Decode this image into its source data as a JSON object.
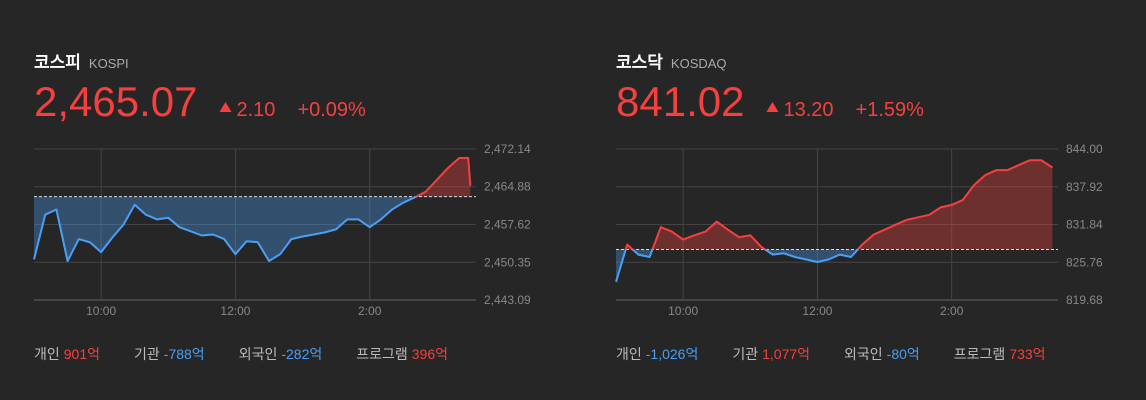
{
  "panels": [
    {
      "title": "코스피",
      "subtitle": "KOSPI",
      "price": {
        "value": 2465.07,
        "label": "2,465.07"
      },
      "change": {
        "value": 2.1,
        "label": "2.10"
      },
      "change_pct": {
        "value": 0.09,
        "label": "+0.09%"
      },
      "chart_data": {
        "type": "line",
        "x": [
          0,
          10,
          20,
          30,
          40,
          50,
          60,
          70,
          80,
          90,
          100,
          110,
          120,
          130,
          140,
          150,
          160,
          170,
          180,
          190,
          200,
          210,
          220,
          230,
          240,
          250,
          260,
          270,
          280,
          290,
          300,
          310,
          320,
          330,
          340,
          350,
          360,
          370,
          380,
          388,
          390
        ],
        "series": [
          {
            "values": [
              2450.9,
              2459.5,
              2460.5,
              2450.6,
              2454.8,
              2454.2,
              2452.3,
              2455.1,
              2457.6,
              2461.4,
              2459.5,
              2458.6,
              2458.9,
              2457.1,
              2456.3,
              2455.5,
              2455.7,
              2454.8,
              2451.9,
              2454.4,
              2454.2,
              2450.6,
              2451.9,
              2454.8,
              2455.3,
              2455.7,
              2456.1,
              2456.7,
              2458.6,
              2458.6,
              2457.1,
              2458.6,
              2460.5,
              2461.8,
              2462.8,
              2463.9,
              2466.2,
              2468.5,
              2470.4,
              2470.4,
              2465.07
            ]
          }
        ],
        "baseline": 2462.97,
        "xlim": [
          0,
          395
        ],
        "xticks": [
          {
            "value": 60,
            "label": "10:00"
          },
          {
            "value": 180,
            "label": "12:00"
          },
          {
            "value": 300,
            "label": "2:00"
          }
        ],
        "ylim": [
          2443.09,
          2472.14
        ],
        "yticks": [
          {
            "value": 2443.09,
            "label": "2,443.09"
          },
          {
            "value": 2450.35,
            "label": "2,450.35"
          },
          {
            "value": 2457.62,
            "label": "2,457.62"
          },
          {
            "value": 2464.88,
            "label": "2,464.88"
          },
          {
            "value": 2472.14,
            "label": "2,472.14"
          }
        ],
        "up_color": "#f5403f",
        "down_color": "#4a9ff5",
        "grid": true
      },
      "flows": [
        {
          "name": "개인",
          "value": 901,
          "label": "901억"
        },
        {
          "name": "기관",
          "value": -788,
          "label": "-788억"
        },
        {
          "name": "외국인",
          "value": -282,
          "label": "-282억"
        },
        {
          "name": "프로그램",
          "value": 396,
          "label": "396억"
        }
      ]
    },
    {
      "title": "코스닥",
      "subtitle": "KOSDAQ",
      "price": {
        "value": 841.02,
        "label": "841.02"
      },
      "change": {
        "value": 13.2,
        "label": "13.20"
      },
      "change_pct": {
        "value": 1.59,
        "label": "+1.59%"
      },
      "chart_data": {
        "type": "line",
        "x": [
          0,
          10,
          20,
          30,
          40,
          50,
          60,
          70,
          80,
          90,
          100,
          110,
          120,
          130,
          140,
          150,
          160,
          170,
          180,
          190,
          200,
          210,
          220,
          230,
          240,
          250,
          260,
          270,
          280,
          290,
          300,
          310,
          320,
          330,
          340,
          350,
          360,
          370,
          380,
          390
        ],
        "series": [
          {
            "values": [
              822.6,
              828.6,
              827.0,
              826.6,
              831.4,
              830.7,
              829.4,
              830.1,
              830.7,
              832.3,
              831.0,
              829.8,
              830.1,
              828.2,
              827.0,
              827.2,
              826.6,
              826.2,
              825.8,
              826.2,
              827.0,
              826.6,
              828.6,
              830.2,
              831.0,
              831.8,
              832.6,
              833.0,
              833.4,
              834.6,
              835.0,
              835.8,
              838.2,
              839.8,
              840.6,
              840.6,
              841.4,
              842.2,
              842.2,
              841.02
            ]
          }
        ],
        "baseline": 827.82,
        "xlim": [
          0,
          395
        ],
        "xticks": [
          {
            "value": 60,
            "label": "10:00"
          },
          {
            "value": 180,
            "label": "12:00"
          },
          {
            "value": 300,
            "label": "2:00"
          }
        ],
        "ylim": [
          819.68,
          844
        ],
        "yticks": [
          819.68,
          825.76,
          831.84,
          837.92,
          {
            "value": 844,
            "label": "844.00"
          }
        ],
        "up_color": "#f5403f",
        "down_color": "#4a9ff5",
        "grid": true
      },
      "flows": [
        {
          "name": "개인",
          "value": -1026,
          "label": "-1,026억"
        },
        {
          "name": "기관",
          "value": 1077,
          "label": "1,077억"
        },
        {
          "name": "외국인",
          "value": -80,
          "label": "-80억"
        },
        {
          "name": "프로그램",
          "value": 733,
          "label": "733억"
        }
      ]
    }
  ]
}
